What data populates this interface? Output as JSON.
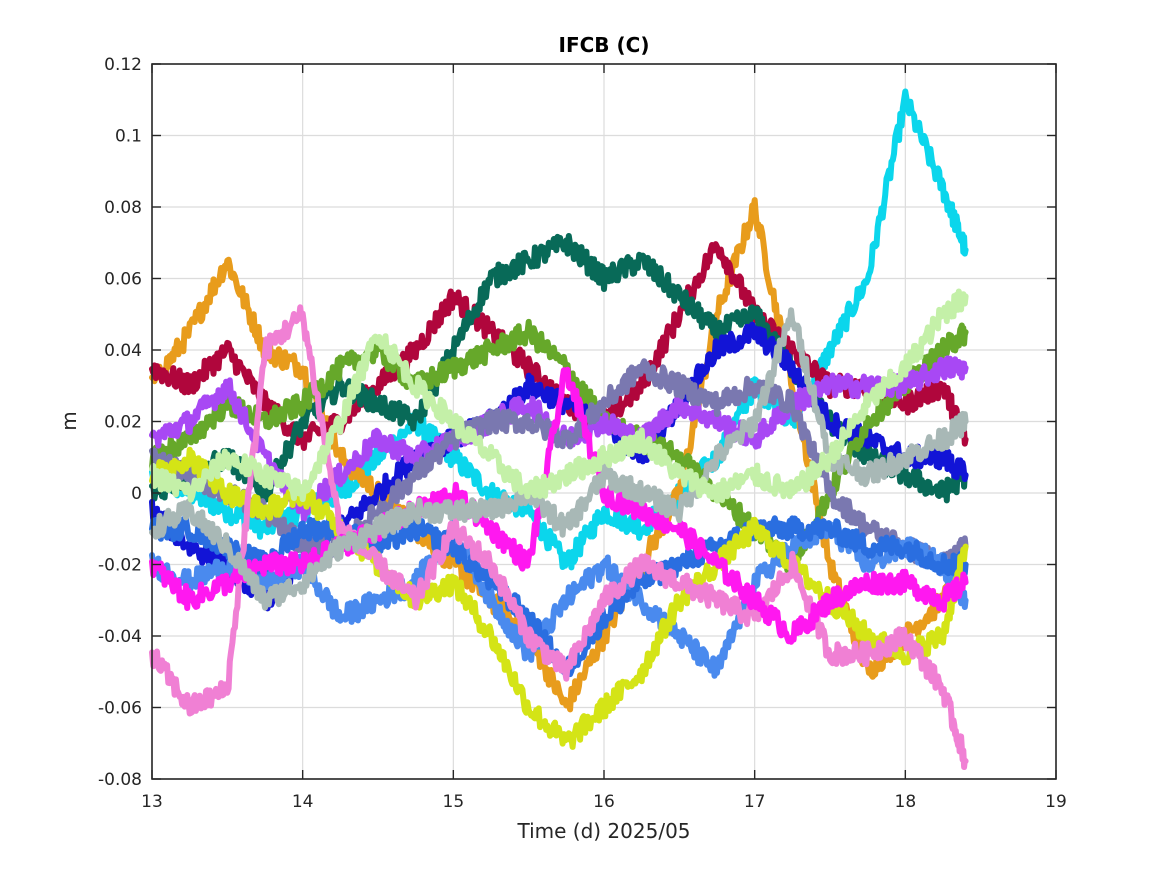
{
  "chart_data": {
    "type": "line",
    "title": "IFCB (C)",
    "xlabel": "Time (d)  2025/05",
    "ylabel": "m",
    "xlim": [
      13,
      19
    ],
    "ylim": [
      -0.08,
      0.12
    ],
    "xticks": [
      "13",
      "14",
      "15",
      "16",
      "17",
      "18",
      "19"
    ],
    "yticks": [
      "-0.08",
      "-0.06",
      "-0.04",
      "-0.02",
      "0",
      "0.02",
      "0.04",
      "0.06",
      "0.08",
      "0.1",
      "0.12"
    ],
    "grid": true,
    "legend": "none",
    "x": [
      13.0,
      13.25,
      13.5,
      13.75,
      14.0,
      14.25,
      14.5,
      14.75,
      15.0,
      15.25,
      15.5,
      15.75,
      16.0,
      16.25,
      16.5,
      16.75,
      17.0,
      17.25,
      17.5,
      17.75,
      18.0,
      18.25,
      18.4
    ],
    "series": [
      {
        "color": "#0bd6ec",
        "values": [
          0.005,
          0.0,
          -0.005,
          -0.01,
          -0.005,
          0.0,
          0.01,
          0.02,
          0.01,
          0.0,
          -0.005,
          -0.02,
          -0.005,
          -0.01,
          0.0,
          0.01,
          0.03,
          0.02,
          0.04,
          0.06,
          0.11,
          0.085,
          0.068
        ]
      },
      {
        "color": "#e89c1c",
        "values": [
          0.03,
          0.045,
          0.065,
          0.04,
          0.035,
          0.01,
          0.0,
          -0.01,
          -0.02,
          -0.03,
          -0.04,
          -0.06,
          -0.04,
          -0.02,
          0.0,
          0.05,
          0.08,
          0.03,
          -0.02,
          -0.05,
          -0.04,
          -0.03,
          -0.02
        ]
      },
      {
        "color": "#b0063c",
        "values": [
          0.035,
          0.03,
          0.04,
          0.025,
          0.015,
          0.02,
          0.03,
          0.04,
          0.055,
          0.045,
          0.035,
          0.025,
          0.02,
          0.03,
          0.05,
          0.07,
          0.05,
          0.04,
          0.03,
          0.03,
          0.025,
          0.03,
          0.015
        ]
      },
      {
        "color": "#086a58",
        "values": [
          0.0,
          0.005,
          0.01,
          0.0,
          0.02,
          0.03,
          0.025,
          0.02,
          0.04,
          0.06,
          0.065,
          0.07,
          0.06,
          0.065,
          0.055,
          0.045,
          0.05,
          0.035,
          0.02,
          0.01,
          0.005,
          0.0,
          0.005
        ]
      },
      {
        "color": "#1214d6",
        "values": [
          -0.005,
          -0.015,
          -0.02,
          -0.03,
          -0.02,
          -0.01,
          0.0,
          0.01,
          0.015,
          0.02,
          0.03,
          0.025,
          0.02,
          0.01,
          0.025,
          0.04,
          0.045,
          0.035,
          0.02,
          0.015,
          0.01,
          0.01,
          0.005
        ]
      },
      {
        "color": "#66a82a",
        "values": [
          0.01,
          0.015,
          0.025,
          0.02,
          0.025,
          0.035,
          0.04,
          0.03,
          0.035,
          0.04,
          0.045,
          0.035,
          0.02,
          0.015,
          0.01,
          0.0,
          -0.01,
          -0.02,
          0.0,
          0.02,
          0.03,
          0.04,
          0.045
        ]
      },
      {
        "color": "#a848f4",
        "values": [
          0.015,
          0.02,
          0.03,
          0.01,
          -0.005,
          0.005,
          0.015,
          0.01,
          0.015,
          0.02,
          0.025,
          0.015,
          0.02,
          0.015,
          0.025,
          0.02,
          0.015,
          0.025,
          0.03,
          0.03,
          0.03,
          0.035,
          0.035
        ]
      },
      {
        "color": "#7a78b0",
        "values": [
          0.01,
          0.005,
          0.0,
          -0.005,
          -0.015,
          -0.015,
          -0.005,
          0.005,
          0.015,
          0.02,
          0.02,
          0.015,
          0.025,
          0.035,
          0.03,
          0.025,
          0.03,
          0.025,
          0.0,
          -0.01,
          -0.015,
          -0.02,
          -0.015
        ]
      },
      {
        "color": "#4a8aee",
        "values": [
          -0.02,
          -0.025,
          -0.02,
          -0.025,
          -0.02,
          -0.035,
          -0.03,
          -0.025,
          -0.01,
          -0.03,
          -0.045,
          -0.03,
          -0.02,
          -0.03,
          -0.04,
          -0.05,
          -0.025,
          -0.015,
          -0.01,
          -0.02,
          -0.015,
          -0.02,
          -0.03
        ]
      },
      {
        "color": "#2a6ee0",
        "values": [
          -0.01,
          -0.01,
          -0.015,
          -0.02,
          -0.01,
          -0.01,
          -0.015,
          -0.01,
          -0.015,
          -0.025,
          -0.035,
          -0.05,
          -0.035,
          -0.025,
          -0.02,
          -0.015,
          -0.01,
          -0.01,
          -0.01,
          -0.015,
          -0.015,
          -0.02,
          -0.02
        ]
      },
      {
        "color": "#d4e416",
        "values": [
          0.005,
          0.01,
          0.0,
          -0.005,
          0.0,
          -0.01,
          -0.02,
          -0.03,
          -0.025,
          -0.04,
          -0.06,
          -0.07,
          -0.06,
          -0.05,
          -0.03,
          -0.02,
          -0.01,
          -0.02,
          -0.03,
          -0.04,
          -0.045,
          -0.04,
          -0.015
        ]
      },
      {
        "color": "#f080d4",
        "values": [
          -0.045,
          -0.06,
          -0.055,
          0.04,
          0.05,
          -0.01,
          -0.02,
          -0.03,
          -0.01,
          -0.02,
          -0.04,
          -0.05,
          -0.03,
          -0.02,
          -0.025,
          -0.03,
          -0.035,
          -0.02,
          -0.045,
          -0.045,
          -0.04,
          -0.055,
          -0.075
        ]
      },
      {
        "color": "#ff18f0",
        "values": [
          -0.02,
          -0.03,
          -0.025,
          -0.02,
          -0.02,
          -0.015,
          -0.01,
          -0.005,
          0.0,
          -0.01,
          -0.02,
          0.035,
          0.0,
          -0.005,
          -0.01,
          -0.02,
          -0.03,
          -0.04,
          -0.03,
          -0.025,
          -0.025,
          -0.03,
          -0.025
        ]
      },
      {
        "color": "#a8b8b6",
        "values": [
          -0.01,
          -0.005,
          -0.015,
          -0.03,
          -0.025,
          -0.015,
          -0.01,
          -0.005,
          -0.005,
          -0.005,
          0.0,
          -0.01,
          0.005,
          0.0,
          -0.005,
          0.01,
          0.02,
          0.05,
          0.01,
          0.005,
          0.01,
          0.015,
          0.02
        ]
      },
      {
        "color": "#c4f0a8",
        "values": [
          0.005,
          0.0,
          0.01,
          0.005,
          0.0,
          0.02,
          0.045,
          0.03,
          0.02,
          0.01,
          0.0,
          0.005,
          0.01,
          0.015,
          0.005,
          0.0,
          0.005,
          0.0,
          0.01,
          0.025,
          0.035,
          0.05,
          0.055
        ]
      }
    ]
  }
}
